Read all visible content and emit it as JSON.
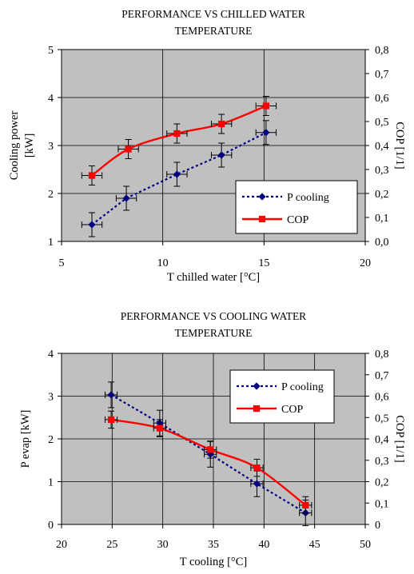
{
  "chart_data": [
    {
      "type": "line",
      "title_lines": [
        "PERFORMANCE VS CHILLED WATER",
        "TEMPERATURE"
      ],
      "xlabel": "T chilled water [°C]",
      "ylabel_lines": [
        "Cooling power",
        "[kW]"
      ],
      "y2label": "COP [1/1]",
      "xlim": [
        5,
        20
      ],
      "ylim": [
        1,
        5
      ],
      "y2lim": [
        0,
        0.8
      ],
      "x_ticks": [
        "5",
        "10",
        "15",
        "20"
      ],
      "y_ticks": [
        "1",
        "2",
        "3",
        "4",
        "5"
      ],
      "y2_ticks": [
        "0,0",
        "0,1",
        "0,2",
        "0,3",
        "0,4",
        "0,5",
        "0,6",
        "0,7",
        "0,8"
      ],
      "grid": true,
      "background": "#c0c0c0",
      "legend_position": "lower-right",
      "series": [
        {
          "name": "P cooling",
          "axis": "left",
          "color": "#000080",
          "line": "dotted",
          "marker": "diamond",
          "x": [
            6.5,
            8.2,
            10.7,
            12.9,
            15.1
          ],
          "y": [
            1.35,
            1.9,
            2.4,
            2.8,
            3.27
          ],
          "xerr": 0.5,
          "yerr": 0.25
        },
        {
          "name": "COP",
          "axis": "right",
          "color": "#ff0000",
          "line": "solid",
          "marker": "square",
          "x": [
            6.5,
            8.3,
            10.7,
            12.9,
            15.1
          ],
          "y": [
            0.275,
            0.385,
            0.45,
            0.49,
            0.565
          ],
          "xerr": 0.5,
          "yerr": 0.04
        }
      ]
    },
    {
      "type": "line",
      "title_lines": [
        "PERFORMANCE VS COOLING WATER",
        "TEMPERATURE"
      ],
      "xlabel": "T cooling [°C]",
      "ylabel_lines": [
        "P evap [kW]"
      ],
      "y2label": "COP [1/1]",
      "xlim": [
        20,
        50
      ],
      "ylim": [
        0,
        4
      ],
      "y2lim": [
        0,
        0.8
      ],
      "x_ticks": [
        "20",
        "25",
        "30",
        "35",
        "40",
        "45",
        "50"
      ],
      "y_ticks": [
        "0",
        "1",
        "2",
        "3",
        "4"
      ],
      "y2_ticks": [
        "0",
        "0,1",
        "0,2",
        "0,3",
        "0,4",
        "0,5",
        "0,6",
        "0,7",
        "0,8"
      ],
      "grid": true,
      "background": "#c0c0c0",
      "legend_position": "top-right",
      "series": [
        {
          "name": "P cooling",
          "axis": "left",
          "color": "#000080",
          "line": "dotted",
          "marker": "diamond",
          "x": [
            24.9,
            29.7,
            34.7,
            39.3,
            44.1
          ],
          "y": [
            3.03,
            2.37,
            1.64,
            0.95,
            0.27
          ],
          "xerr": 0.6,
          "yerr": 0.3
        },
        {
          "name": "COP",
          "axis": "right",
          "color": "#ff0000",
          "line": "solid",
          "marker": "square",
          "x": [
            24.9,
            29.7,
            34.7,
            39.3,
            44.1
          ],
          "y": [
            0.49,
            0.45,
            0.35,
            0.265,
            0.09
          ],
          "xerr": 0.6,
          "yerr": 0.04
        }
      ]
    }
  ]
}
